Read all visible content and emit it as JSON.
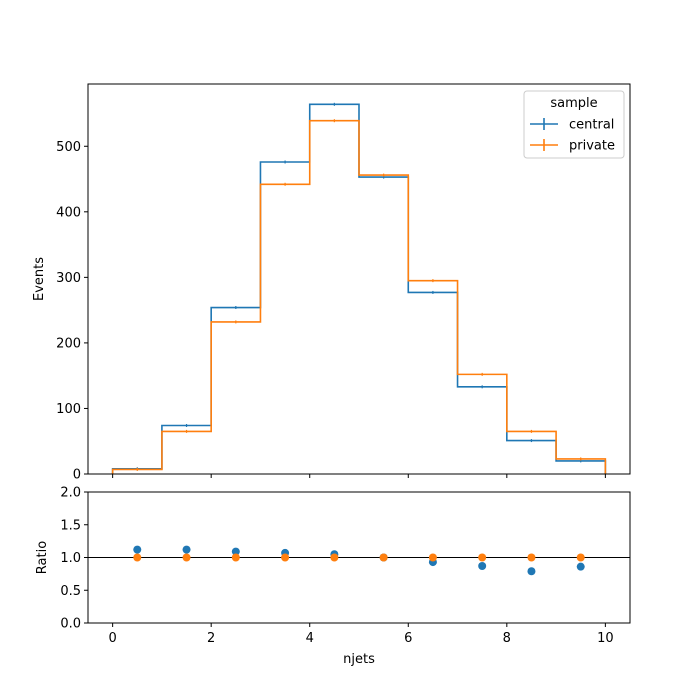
{
  "chart_data": [
    {
      "type": "step-histogram",
      "ylabel": "Events",
      "xlim": [
        -0.5,
        10.5
      ],
      "ylim": [
        0,
        595
      ],
      "yticks": [
        0,
        100,
        200,
        300,
        400,
        500
      ],
      "xticks": [
        0,
        2,
        4,
        6,
        8,
        10
      ],
      "bin_edges": [
        0,
        1,
        2,
        3,
        4,
        5,
        6,
        7,
        8,
        9,
        10
      ],
      "series": [
        {
          "name": "central",
          "color": "#1f77b4",
          "values": [
            8,
            74,
            254,
            476,
            564,
            453,
            277,
            133,
            51,
            20
          ]
        },
        {
          "name": "private",
          "color": "#ff7f0e",
          "values": [
            7,
            65,
            232,
            442,
            539,
            456,
            295,
            152,
            65,
            23
          ]
        }
      ],
      "legend": {
        "title": "sample",
        "placement": "top-right"
      }
    },
    {
      "type": "scatter",
      "ylabel": "Ratio",
      "xlabel": "njets",
      "xlim": [
        -0.5,
        10.5
      ],
      "ylim": [
        0.0,
        2.0
      ],
      "yticks": [
        0.0,
        0.5,
        1.0,
        1.5,
        2.0
      ],
      "xticks": [
        0,
        2,
        4,
        6,
        8,
        10
      ],
      "reference_line": 1.0,
      "x": [
        0.5,
        1.5,
        2.5,
        3.5,
        4.5,
        5.5,
        6.5,
        7.5,
        8.5,
        9.5
      ],
      "series": [
        {
          "name": "central",
          "color": "#1f77b4",
          "values": [
            1.12,
            1.12,
            1.09,
            1.07,
            1.05,
            1.0,
            0.93,
            0.87,
            0.79,
            0.86
          ]
        },
        {
          "name": "private",
          "color": "#ff7f0e",
          "values": [
            1.0,
            1.0,
            1.0,
            1.0,
            1.0,
            1.0,
            1.0,
            1.0,
            1.0,
            1.0
          ]
        }
      ]
    }
  ]
}
